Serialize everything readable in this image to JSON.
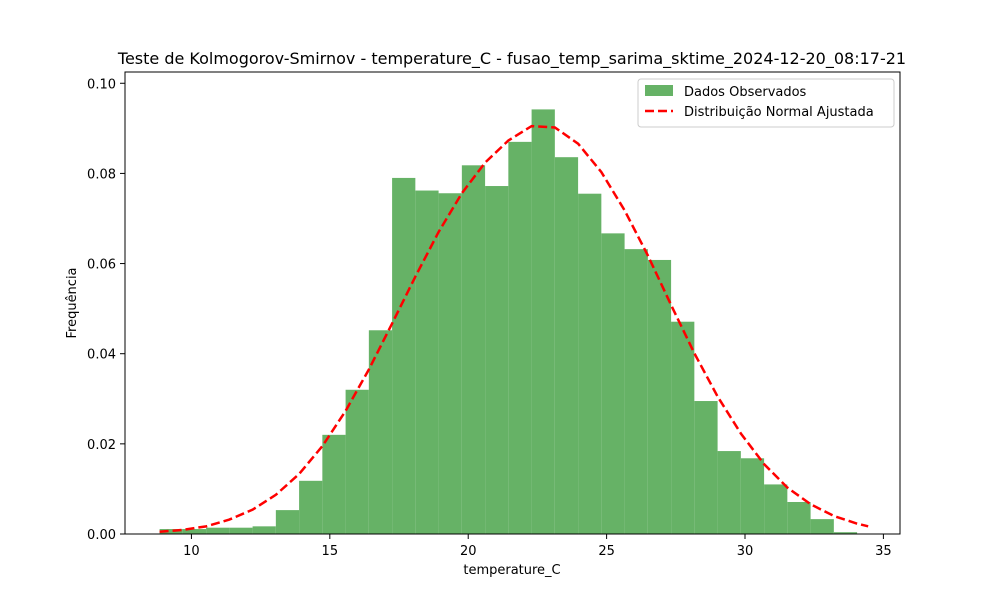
{
  "chart_data": {
    "type": "bar",
    "title": "Teste de Kolmogorov-Smirnov - temperature_C - fusao_temp_sarima_sktime_2024-12-20_08:17-21",
    "xlabel": "temperature_C",
    "ylabel": "Frequência",
    "xlim": [
      7.6,
      35.6
    ],
    "ylim": [
      0,
      0.1025
    ],
    "x_ticks": [
      10,
      15,
      20,
      25,
      30,
      35
    ],
    "x_tick_labels": [
      "10",
      "15",
      "20",
      "25",
      "30",
      "35"
    ],
    "y_ticks": [
      0,
      0.02,
      0.04,
      0.06,
      0.08,
      0.1
    ],
    "y_tick_labels": [
      "0.00",
      "0.02",
      "0.04",
      "0.06",
      "0.08",
      "0.10"
    ],
    "grid": false,
    "legend_position": "top-right",
    "legend": [
      "Dados Observados",
      "Distribuição Normal Ajustada"
    ],
    "series": [
      {
        "name": "Dados Observados",
        "type": "histogram",
        "color": "#66b266",
        "bin_edges": [
          8.85,
          9.69,
          10.53,
          11.37,
          12.21,
          13.05,
          13.89,
          14.73,
          15.57,
          16.41,
          17.25,
          18.09,
          18.93,
          19.77,
          20.61,
          21.45,
          22.29,
          23.13,
          23.97,
          24.81,
          25.65,
          26.49,
          27.33,
          28.17,
          29.01,
          29.85,
          30.69,
          31.53,
          32.37,
          33.21,
          34.05
        ],
        "values": [
          0.0011,
          0.0011,
          0.0014,
          0.0014,
          0.0017,
          0.0053,
          0.0118,
          0.022,
          0.032,
          0.0452,
          0.079,
          0.0762,
          0.0756,
          0.0818,
          0.0772,
          0.087,
          0.0942,
          0.0836,
          0.0755,
          0.0667,
          0.0632,
          0.0608,
          0.0471,
          0.0295,
          0.0184,
          0.0168,
          0.011,
          0.0071,
          0.0033,
          0.0004
        ]
      },
      {
        "name": "Distribuição Normal Ajustada",
        "type": "line",
        "style": "dashed",
        "color": "#ff0000",
        "x": [
          8.85,
          9.69,
          10.53,
          11.37,
          12.21,
          13.05,
          13.89,
          14.73,
          15.57,
          16.41,
          17.25,
          18.09,
          18.93,
          19.77,
          20.61,
          21.45,
          22.29,
          23.13,
          23.97,
          24.81,
          25.65,
          26.49,
          27.33,
          28.17,
          29.01,
          29.85,
          30.69,
          31.53,
          32.37,
          33.21,
          34.05,
          34.45
        ],
        "y": [
          0.0005,
          0.0009,
          0.0017,
          0.0032,
          0.0054,
          0.0087,
          0.0133,
          0.0195,
          0.0273,
          0.0365,
          0.0467,
          0.0571,
          0.067,
          0.0756,
          0.0824,
          0.0873,
          0.0905,
          0.0902,
          0.0866,
          0.0803,
          0.0718,
          0.0618,
          0.0508,
          0.0401,
          0.0305,
          0.0223,
          0.0155,
          0.0103,
          0.0066,
          0.004,
          0.0023,
          0.0017
        ]
      }
    ]
  }
}
